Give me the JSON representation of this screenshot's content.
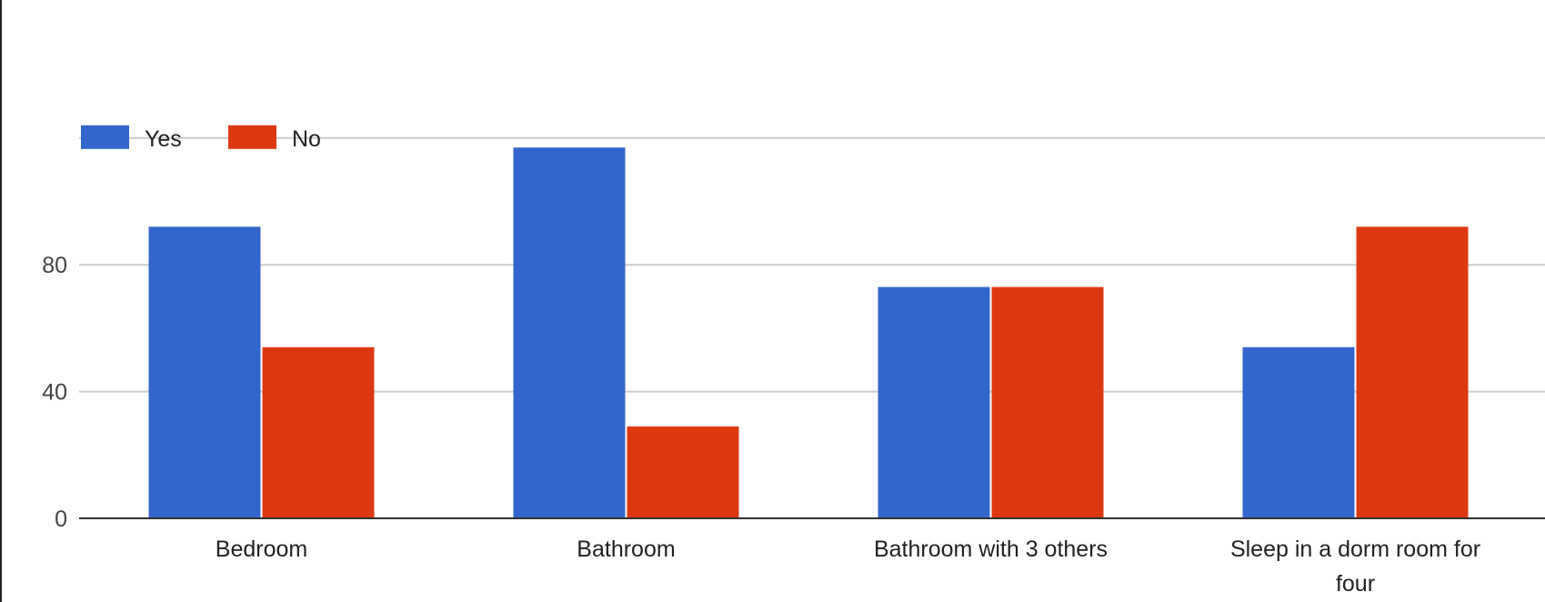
{
  "chart_data": {
    "type": "bar",
    "title": "",
    "xlabel": "",
    "ylabel": "",
    "categories": [
      [
        "Bedroom"
      ],
      [
        "Bathroom"
      ],
      [
        "Bathroom with 3 others"
      ],
      [
        "Sleep in a dorm room for",
        "four"
      ]
    ],
    "series": [
      {
        "name": "Yes",
        "color": "#3366cc",
        "values": [
          92,
          117,
          73,
          54
        ]
      },
      {
        "name": "No",
        "color": "#dc3912",
        "values": [
          54,
          29,
          73,
          92
        ]
      }
    ],
    "y_ticks": [
      0,
      40,
      80
    ],
    "ylim": [
      0,
      120
    ],
    "grid": true,
    "legend_position": "top-left"
  }
}
